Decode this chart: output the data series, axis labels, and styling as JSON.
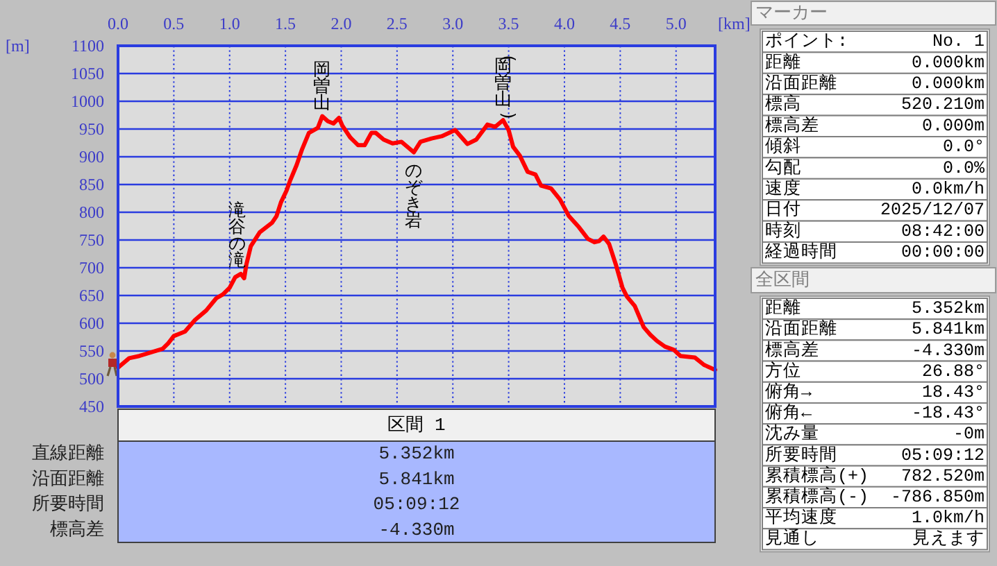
{
  "chart_data": [
    {
      "type": "line",
      "xlabel": "[km]",
      "ylabel": "[m]",
      "x": [
        0,
        0.1,
        0.19,
        0.4,
        0.45,
        0.5,
        0.6,
        0.69,
        0.79,
        0.88,
        0.94,
        1.0,
        1.05,
        1.1,
        1.13,
        1.15,
        1.19,
        1.27,
        1.38,
        1.42,
        1.46,
        1.51,
        1.54,
        1.6,
        1.65,
        1.71,
        1.79,
        1.83,
        1.88,
        1.93,
        1.98,
        2.01,
        2.08,
        2.15,
        2.21,
        2.27,
        2.31,
        2.38,
        2.46,
        2.54,
        2.65,
        2.71,
        2.81,
        2.9,
        3.02,
        3.13,
        3.21,
        3.31,
        3.38,
        3.45,
        3.5,
        3.54,
        3.6,
        3.67,
        3.74,
        3.79,
        3.88,
        3.96,
        4.04,
        4.13,
        4.21,
        4.27,
        4.31,
        4.35,
        4.4,
        4.46,
        4.52,
        4.56,
        4.63,
        4.71,
        4.77,
        4.83,
        4.9,
        4.98,
        5.04,
        5.17,
        5.25,
        5.35
      ],
      "series": [
        {
          "color": "#ff0000",
          "values": [
            520,
            537,
            541,
            554,
            564,
            577,
            585,
            606,
            623,
            645,
            652,
            664,
            683,
            689,
            681,
            706,
            739,
            764,
            781,
            793,
            818,
            839,
            856,
            885,
            914,
            943,
            952,
            973,
            964,
            960,
            970,
            956,
            935,
            921,
            921,
            943,
            943,
            931,
            924,
            927,
            908,
            927,
            933,
            937,
            948,
            923,
            931,
            958,
            954,
            966,
            948,
            918,
            902,
            873,
            868,
            848,
            843,
            823,
            793,
            773,
            752,
            746,
            748,
            756,
            743,
            706,
            664,
            648,
            631,
            593,
            579,
            568,
            558,
            552,
            541,
            538,
            525,
            516
          ]
        }
      ],
      "xlim": [
        0,
        5.35
      ],
      "ylim": [
        450,
        1100
      ],
      "xticks": [
        {
          "value": 0,
          "label": "0.0"
        },
        0.5,
        {
          "value": 1,
          "label": "1.0"
        },
        1.5,
        {
          "value": 2,
          "label": "2.0"
        },
        2.5,
        {
          "value": 3,
          "label": "3.0"
        },
        3.5,
        {
          "value": 4,
          "label": "4.0"
        },
        4.5,
        {
          "value": 5,
          "label": "5.0"
        }
      ],
      "yticks": [
        450,
        500,
        550,
        600,
        650,
        700,
        750,
        800,
        850,
        900,
        950,
        1000,
        1050,
        1100
      ],
      "grid": true,
      "annotations": [
        {
          "text": "岡曽山",
          "x": 1.83,
          "y": 973
        },
        {
          "text": "(岡曽山)",
          "x": 3.45,
          "y": 966
        },
        {
          "text": "滝谷の滝",
          "x": 1.07,
          "y": 686
        },
        {
          "text": "のぞき岩",
          "x": 2.65,
          "y": 908
        }
      ]
    },
    {
      "type": "other",
      "title": "区間 1",
      "annotations": [
        "直線距離",
        "5.352km",
        "沿面距離",
        "5.841km",
        "所要時間",
        "05:09:12",
        "標高差",
        "-4.330m"
      ]
    },
    {
      "type": "other",
      "title": "マーカー",
      "annotations": [
        "ポイント:",
        "No. 1",
        "距離",
        "0.000km",
        "沿面距離",
        "0.000km",
        "標高",
        "520.210m",
        "標高差",
        "0.000m",
        "傾斜",
        "0.0°",
        "勾配",
        "0.0%",
        "速度",
        "0.0km/h",
        "日付",
        "2025/12/07",
        "時刻",
        "08:42:00",
        "経過時間",
        "00:00:00"
      ]
    },
    {
      "type": "other",
      "title": "全区間",
      "annotations": [
        "距離",
        "5.352km",
        "沿面距離",
        "5.841km",
        "標高差",
        "-4.330m",
        "方位",
        "26.88°",
        "俯角→",
        "18.43°",
        "俯角←",
        "-18.43°",
        "沈み量",
        "-0m",
        "所要時間",
        "05:09:12",
        "累積標高(+)",
        "782.520m",
        "累積標高(-)",
        "-786.850m",
        "平均速度",
        "1.0km/h",
        "見通し",
        "見えます"
      ]
    }
  ]
}
